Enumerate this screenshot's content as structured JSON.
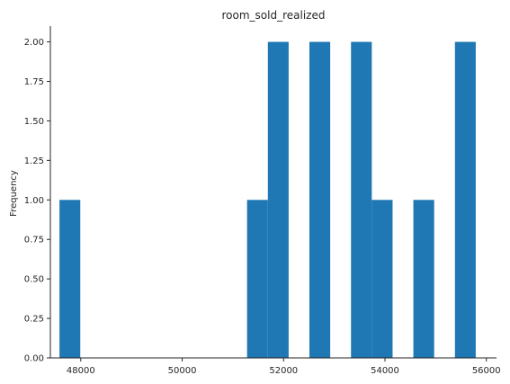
{
  "chart_data": {
    "type": "bar",
    "title": "room_sold_realized",
    "xlabel": "",
    "ylabel": "Frequency",
    "color": "#1f77b4",
    "grid": false,
    "xlim": [
      47400,
      56200
    ],
    "ylim": [
      0,
      2.1
    ],
    "xticks": [
      48000,
      50000,
      52000,
      54000,
      56000
    ],
    "xtick_labels": [
      "48000",
      "50000",
      "52000",
      "54000",
      "56000"
    ],
    "yticks": [
      0,
      0.25,
      0.5,
      0.75,
      1.0,
      1.25,
      1.5,
      1.75,
      2.0
    ],
    "ytick_labels": [
      "0.00",
      "0.25",
      "0.50",
      "0.75",
      "1.00",
      "1.25",
      "1.50",
      "1.75",
      "2.00"
    ],
    "bins": [
      {
        "x0": 47580,
        "x1": 47990,
        "count": 1
      },
      {
        "x0": 51280,
        "x1": 51690,
        "count": 1
      },
      {
        "x0": 51690,
        "x1": 52100,
        "count": 2
      },
      {
        "x0": 52510,
        "x1": 52920,
        "count": 2
      },
      {
        "x0": 53330,
        "x1": 53740,
        "count": 2
      },
      {
        "x0": 53740,
        "x1": 54150,
        "count": 1
      },
      {
        "x0": 54560,
        "x1": 54970,
        "count": 1
      },
      {
        "x0": 55380,
        "x1": 55790,
        "count": 2
      }
    ]
  }
}
